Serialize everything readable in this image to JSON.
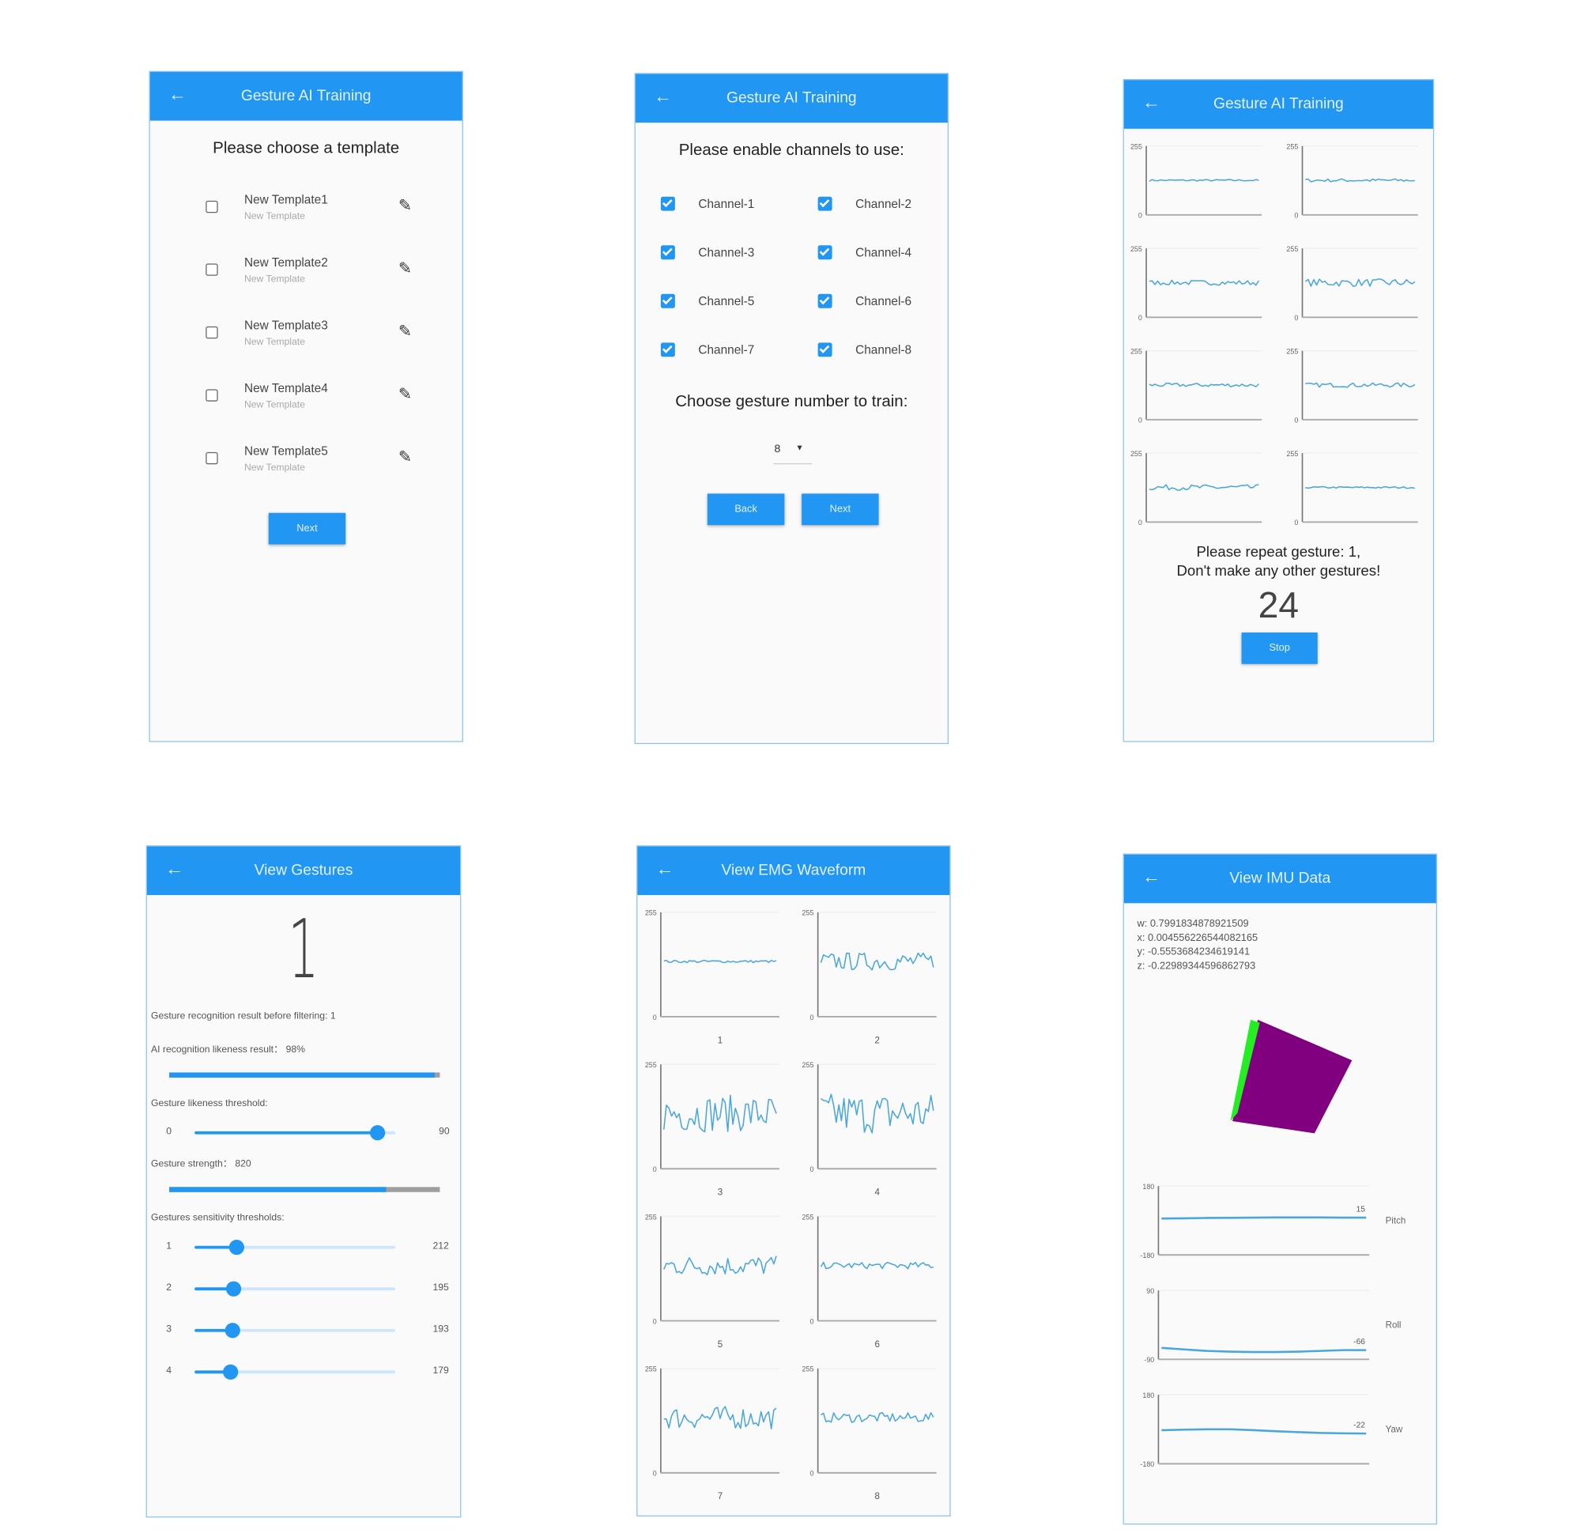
{
  "colors": {
    "primary": "#2196f3",
    "line": "#4ba6dc",
    "cube_face": "#800080",
    "cube_side": "#22ee22"
  },
  "screen1": {
    "back_icon": "arrow-left-icon",
    "title": "Gesture AI Training",
    "heading": "Please choose a template",
    "templates": [
      {
        "name": "New Template1",
        "subtitle": "New Template",
        "checked": false
      },
      {
        "name": "New Template2",
        "subtitle": "New Template",
        "checked": false
      },
      {
        "name": "New Template3",
        "subtitle": "New Template",
        "checked": false
      },
      {
        "name": "New Template4",
        "subtitle": "New Template",
        "checked": false
      },
      {
        "name": "New Template5",
        "subtitle": "New Template",
        "checked": false
      }
    ],
    "edit_icon": "pencil-icon",
    "next_label": "Next"
  },
  "screen2": {
    "title": "Gesture AI Training",
    "heading": "Please enable channels to use:",
    "channels": [
      {
        "label": "Channel-1",
        "checked": true
      },
      {
        "label": "Channel-2",
        "checked": true
      },
      {
        "label": "Channel-3",
        "checked": true
      },
      {
        "label": "Channel-4",
        "checked": true
      },
      {
        "label": "Channel-5",
        "checked": true
      },
      {
        "label": "Channel-6",
        "checked": true
      },
      {
        "label": "Channel-7",
        "checked": true
      },
      {
        "label": "Channel-8",
        "checked": true
      }
    ],
    "gesture_heading": "Choose gesture number to train:",
    "gesture_number": "8",
    "back_label": "Back",
    "next_label": "Next"
  },
  "screen3": {
    "title": "Gesture AI Training",
    "y_max": "255",
    "y_min": "0",
    "prompt_line1": "Please repeat gesture: 1,",
    "prompt_line2": "Don't make any other gestures!",
    "countdown": "24",
    "stop_label": "Stop"
  },
  "screen4": {
    "title": "View Gestures",
    "gesture": "1",
    "result_before_filtering": "Gesture recognition result before filtering: 1",
    "likeness_label": "AI recognition likeness result：  98%",
    "likeness_percent": 98,
    "threshold_label": "Gesture likeness threshold:",
    "threshold_min": "0",
    "threshold_value": "90",
    "threshold_fraction": 0.91,
    "strength_label": "Gesture strength：  820",
    "strength_fraction": 0.8,
    "sensitivity_label": "Gestures sensitivity thresholds:",
    "sensitivities": [
      {
        "id": "1",
        "value": "212",
        "fraction": 0.207
      },
      {
        "id": "2",
        "value": "195",
        "fraction": 0.19
      },
      {
        "id": "3",
        "value": "193",
        "fraction": 0.188
      },
      {
        "id": "4",
        "value": "179",
        "fraction": 0.175
      }
    ]
  },
  "screen5": {
    "title": "View EMG Waveform",
    "y_max": "255",
    "y_min": "0",
    "channels": [
      "1",
      "2",
      "3",
      "4",
      "5",
      "6",
      "7",
      "8"
    ]
  },
  "screen6": {
    "title": "View IMU Data",
    "quaternion": [
      "w: 0.7991834878921509",
      "x: 0.004556226544082165",
      "y: -0.5553684234619141",
      "z: -0.22989344596862793"
    ],
    "charts": [
      {
        "name": "Pitch",
        "y_max": "180",
        "y_min": "-180",
        "ymax": 180,
        "ymin": -180,
        "current": "15",
        "values": [
          10,
          11,
          13,
          14,
          15,
          16,
          16,
          16,
          15,
          15
        ]
      },
      {
        "name": "Roll",
        "y_max": "90",
        "y_min": "-90",
        "ymax": 90,
        "ymin": -90,
        "current": "-66",
        "values": [
          -60,
          -64,
          -68,
          -70,
          -71,
          -71,
          -70,
          -68,
          -66,
          -66
        ]
      },
      {
        "name": "Yaw",
        "y_max": "180",
        "y_min": "-180",
        "ymax": 180,
        "ymin": -180,
        "current": "-22",
        "values": [
          -5,
          -2,
          0,
          0,
          -4,
          -10,
          -15,
          -19,
          -21,
          -22
        ]
      }
    ]
  }
}
